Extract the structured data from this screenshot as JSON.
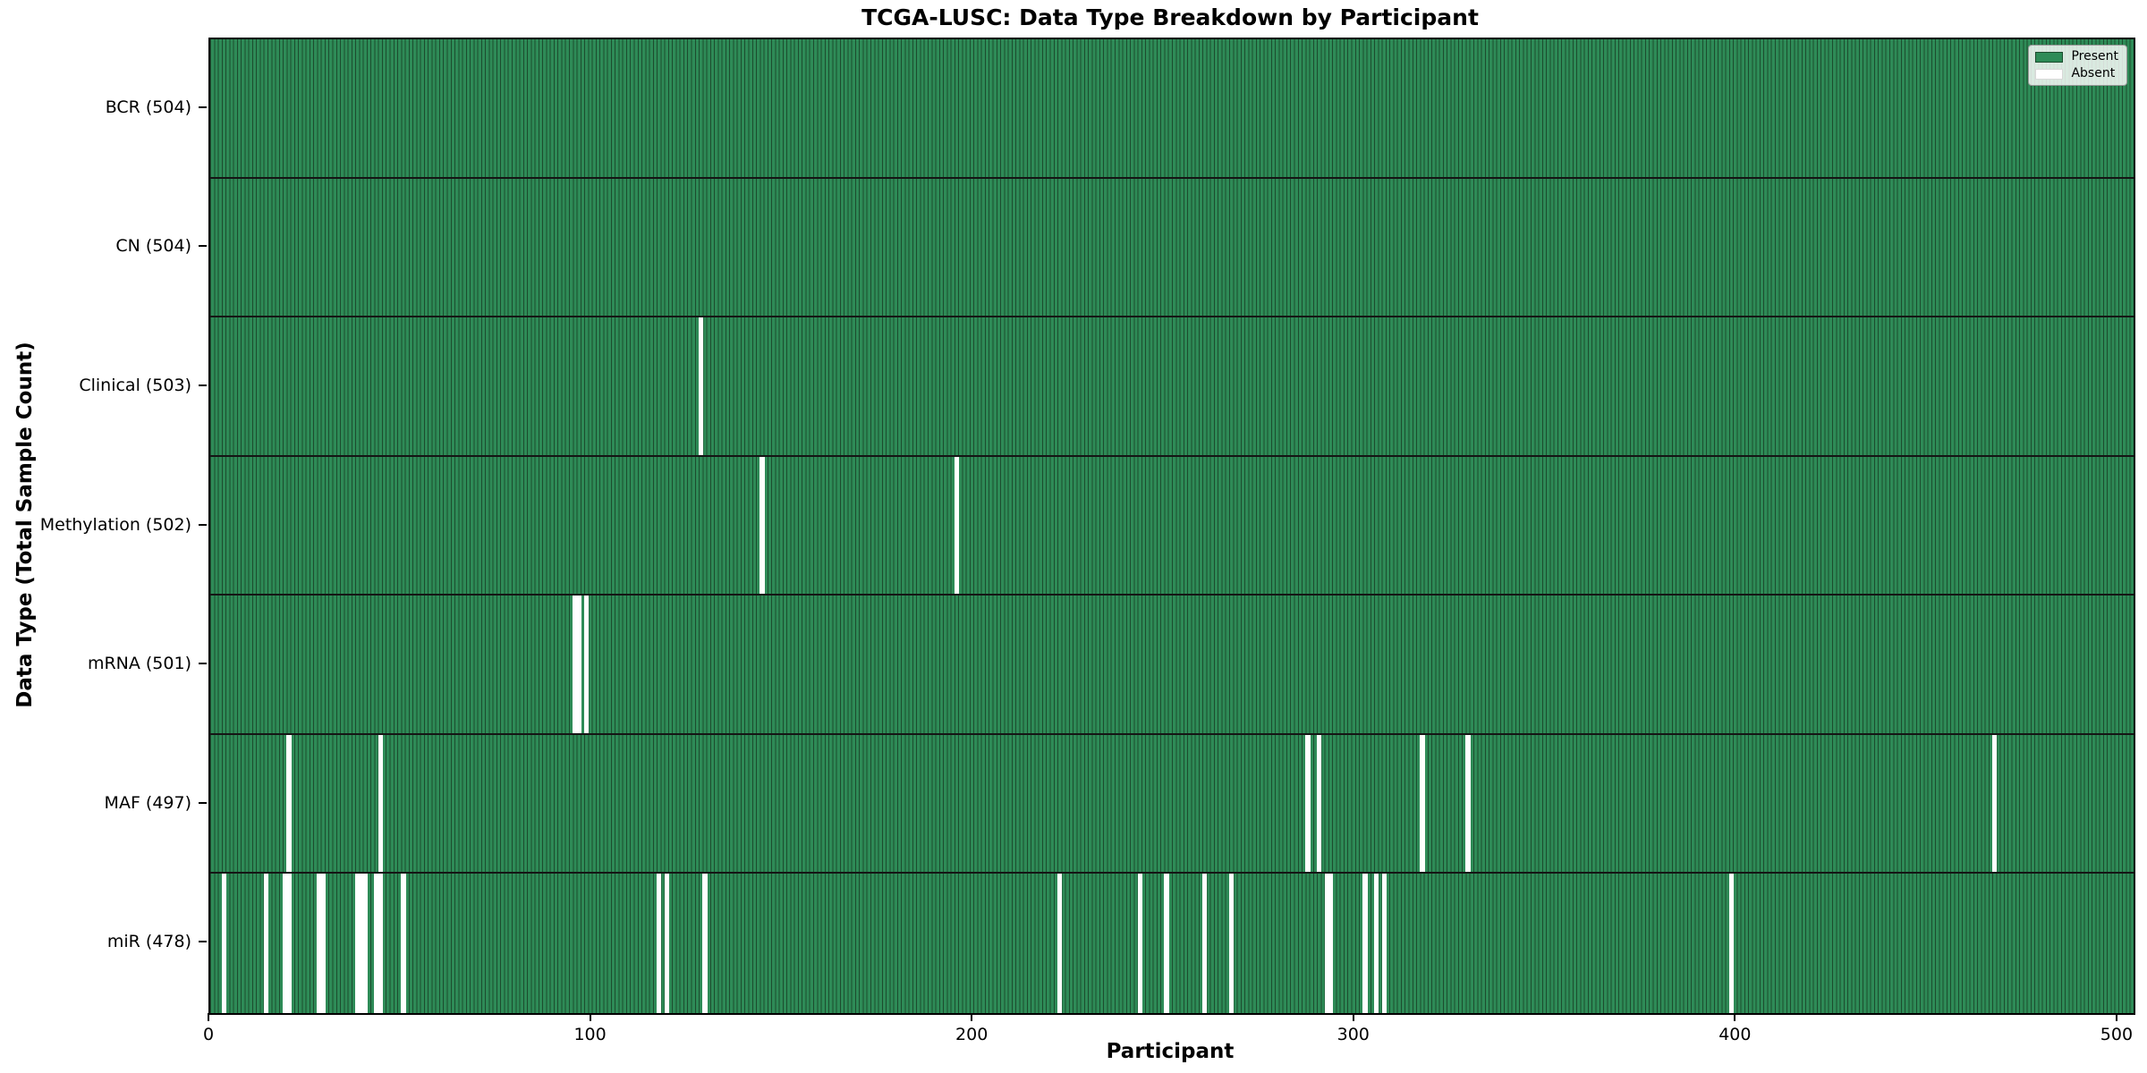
{
  "chart_data": {
    "type": "heatmap",
    "title": "TCGA-LUSC: Data Type Breakdown by Participant",
    "xlabel": "Participant",
    "ylabel": "Data Type (Total Sample Count)",
    "x_ticks": [
      0,
      100,
      200,
      300,
      400,
      500
    ],
    "x_range": [
      0,
      504
    ],
    "total_participants": 504,
    "grid": false,
    "legend": {
      "position": "upper right",
      "entries": [
        {
          "label": "Present",
          "color": "#2e8b57"
        },
        {
          "label": "Absent",
          "color": "#ffffff"
        }
      ]
    },
    "colors": {
      "present": "#2e8b57",
      "bar_edge": "#1c4c2e",
      "absent": "#ffffff",
      "row_divider": "#151515"
    },
    "rows": [
      {
        "label": "BCR (504)",
        "data_type": "BCR",
        "present_count": 504,
        "absent_participants": []
      },
      {
        "label": "CN (504)",
        "data_type": "CN",
        "present_count": 504,
        "absent_participants": []
      },
      {
        "label": "Clinical (503)",
        "data_type": "Clinical",
        "present_count": 503,
        "absent_participants": [
          128
        ]
      },
      {
        "label": "Methylation (502)",
        "data_type": "Methylation",
        "present_count": 502,
        "absent_participants": [
          144,
          195
        ]
      },
      {
        "label": "mRNA (501)",
        "data_type": "mRNA",
        "present_count": 501,
        "absent_participants": [
          95,
          96,
          98
        ]
      },
      {
        "label": "MAF (497)",
        "data_type": "MAF",
        "present_count": 497,
        "absent_participants": [
          20,
          44,
          287,
          290,
          317,
          329,
          467
        ]
      },
      {
        "label": "miR (478)",
        "data_type": "miR",
        "present_count": 478,
        "absent_participants": [
          3,
          14,
          19,
          20,
          28,
          29,
          38,
          39,
          40,
          43,
          44,
          50,
          117,
          119,
          129,
          222,
          243,
          250,
          260,
          267,
          292,
          293,
          302,
          305,
          307,
          398
        ]
      }
    ]
  }
}
